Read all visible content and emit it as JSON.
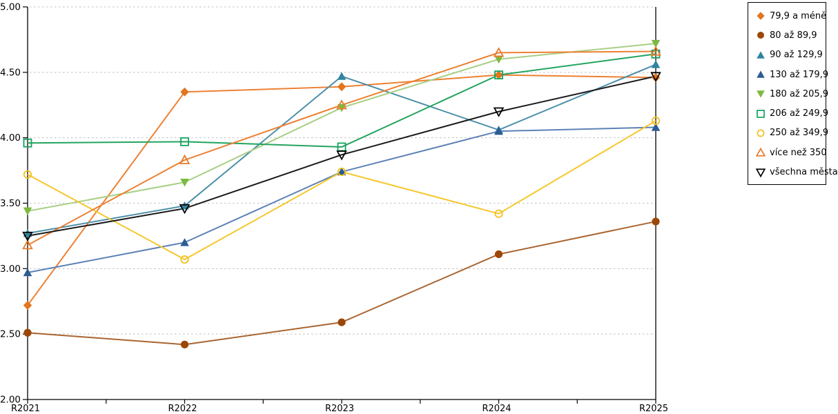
{
  "chart_data": {
    "type": "line",
    "title": "",
    "xlabel": "",
    "ylabel": "",
    "categories": [
      "R2021",
      "R2022",
      "R2023",
      "R2024",
      "R2025"
    ],
    "series": [
      {
        "name": "79,9 a méně",
        "marker": "diamond",
        "marker_fill": "filled",
        "color": "#E2751D",
        "line_color": "#ED8032",
        "values": [
          2.72,
          4.35,
          4.39,
          4.48,
          4.46
        ]
      },
      {
        "name": "80 až 89,9",
        "marker": "circle",
        "marker_fill": "filled",
        "color": "#9C4708",
        "line_color": "#A96430",
        "values": [
          2.51,
          2.42,
          2.59,
          3.11,
          3.36
        ]
      },
      {
        "name": "90 až 129,9",
        "marker": "triangle-up",
        "marker_fill": "filled",
        "color": "#2F84A0",
        "line_color": "#4C8FA9",
        "values": [
          3.27,
          3.48,
          4.47,
          4.06,
          4.56
        ]
      },
      {
        "name": "130 až 179,9",
        "marker": "triangle-up",
        "marker_fill": "filled",
        "color": "#2C5C92",
        "line_color": "#5C81B5",
        "values": [
          2.97,
          3.2,
          3.74,
          4.05,
          4.08
        ]
      },
      {
        "name": "180 až 205,9",
        "marker": "triangle-down",
        "marker_fill": "filled",
        "color": "#7CB93F",
        "line_color": "#A8CF85",
        "values": [
          3.44,
          3.66,
          4.23,
          4.6,
          4.72
        ]
      },
      {
        "name": "206 až 249,9",
        "marker": "square",
        "marker_fill": "hollow",
        "color": "#12A35F",
        "line_color": "#22A45D",
        "values": [
          3.96,
          3.97,
          3.93,
          4.48,
          4.64
        ]
      },
      {
        "name": "250 až 349,9",
        "marker": "circle",
        "marker_fill": "hollow",
        "color": "#F2C01A",
        "line_color": "#F5C72B",
        "values": [
          3.72,
          3.07,
          3.74,
          3.42,
          4.13
        ]
      },
      {
        "name": "více než 350",
        "marker": "triangle-up",
        "marker_fill": "hollow",
        "color": "#E87A2B",
        "line_color": "#ED8032",
        "values": [
          3.18,
          3.83,
          4.25,
          4.65,
          4.66
        ]
      },
      {
        "name": "všechna města",
        "marker": "triangle-down",
        "marker_fill": "hollow",
        "color": "#000000",
        "line_color": "#1A1A1A",
        "values": [
          3.25,
          3.46,
          3.87,
          4.2,
          4.47
        ]
      }
    ],
    "ylim": [
      2.0,
      5.0
    ],
    "ytick_step": 0.5,
    "ytick_labels": [
      "2.00",
      "2.50",
      "3.00",
      "3.50",
      "4.00",
      "4.50",
      "5.00"
    ],
    "grid": "horizontal-dashed",
    "grid_color": "#BFBFBF",
    "axis_color": "#000000",
    "legend_position": "right"
  }
}
